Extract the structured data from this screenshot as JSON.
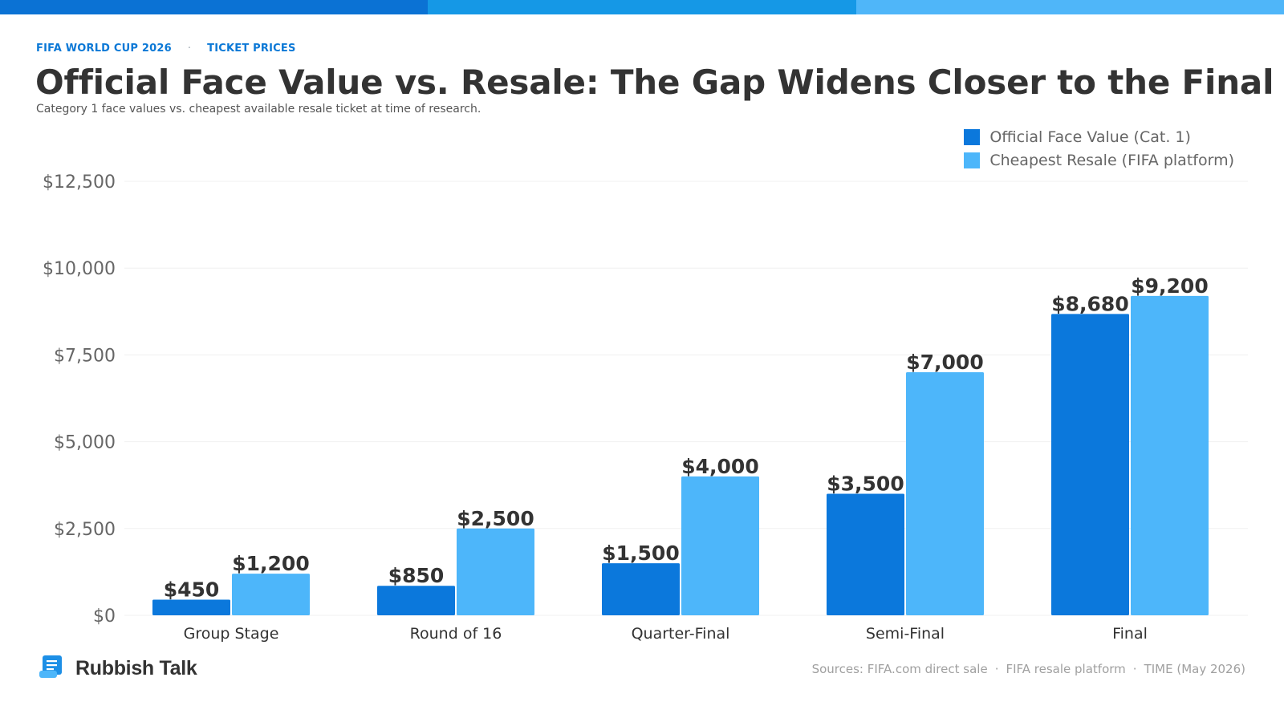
{
  "header": {
    "kicker_left": "FIFA WORLD CUP 2026",
    "kicker_sep": "·",
    "kicker_right": "TICKET PRICES",
    "title": "Official Face Value vs. Resale: The Gap Widens Closer to the Final",
    "subtitle": "Category 1 face values vs. cheapest available resale ticket at time of research."
  },
  "colors": {
    "topbar": [
      "#0b72d4",
      "#1598e6",
      "#4fb6f9"
    ],
    "face_value": "#0b78dc",
    "resale": "#4db6fa",
    "label_text": "#333333",
    "axis_text": "#666666"
  },
  "chart_data": {
    "type": "bar",
    "categories": [
      "Group Stage",
      "Round of 16",
      "Quarter-Final",
      "Semi-Final",
      "Final"
    ],
    "series": [
      {
        "name": "Official Face Value (Cat. 1)",
        "values": [
          450,
          850,
          1500,
          3500,
          8680
        ],
        "labels": [
          "$450",
          "$850",
          "$1,500",
          "$3,500",
          "$8,680"
        ]
      },
      {
        "name": "Cheapest Resale (FIFA platform)",
        "values": [
          1200,
          2500,
          4000,
          7000,
          9200
        ],
        "labels": [
          "$1,200",
          "$2,500",
          "$4,000",
          "$7,000",
          "$9,200"
        ]
      }
    ],
    "yticks": [
      0,
      2500,
      5000,
      7500,
      10000,
      12500
    ],
    "ytick_labels": [
      "$0",
      "$2,500",
      "$5,000",
      "$7,500",
      "$10,000",
      "$12,500"
    ],
    "ylim": [
      0,
      12500
    ],
    "grid": true,
    "legend_position": "top-right"
  },
  "footer": {
    "brand": "Rubbish Talk",
    "brand_icon": "scroll-icon",
    "sources": [
      "Sources: FIFA.com direct sale",
      "·",
      "FIFA resale platform",
      "·",
      "TIME (May 2026)"
    ]
  }
}
